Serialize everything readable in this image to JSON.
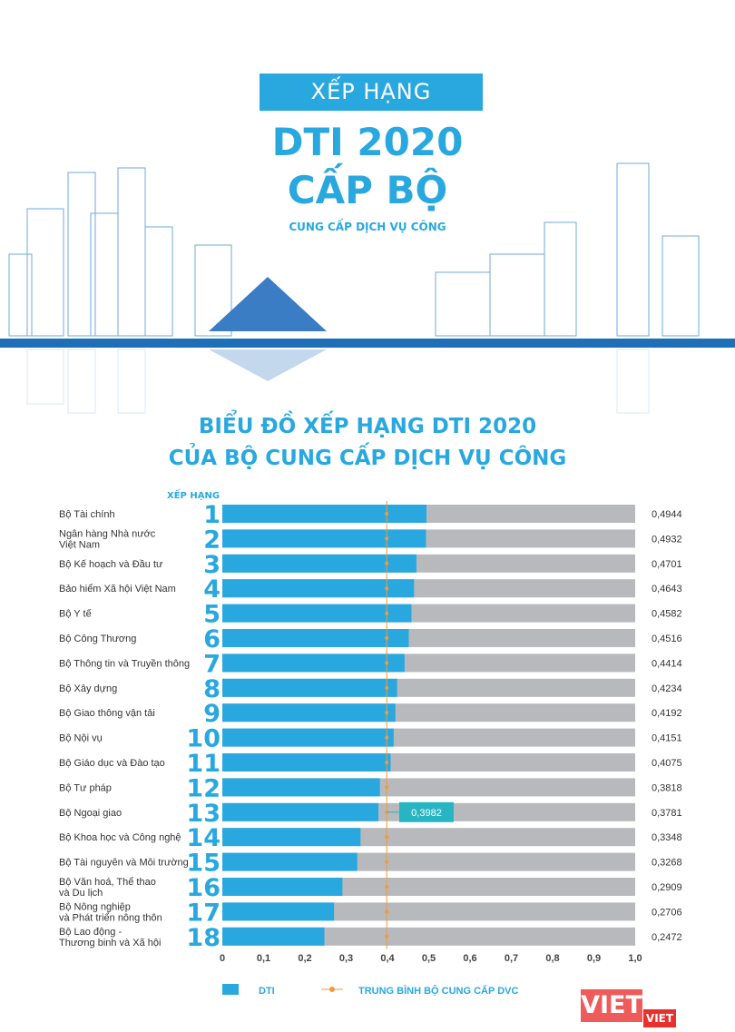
{
  "header": {
    "box": "XẾP HẠNG",
    "title1": "DTI 2020",
    "title2": "CẤP BỘ",
    "subtitle": "CUNG CẤP DỊCH VỤ CÔNG"
  },
  "chart_data": {
    "type": "bar",
    "title_line1": "BIỂU ĐỒ XẾP HẠNG DTI 2020",
    "title_line2": "CỦA BỘ CUNG CẤP DỊCH VỤ CÔNG",
    "rank_header": "XẾP HẠNG",
    "orientation": "horizontal",
    "categories": [
      [
        "Bộ Tài chính"
      ],
      [
        "Ngân hàng Nhà nước",
        "Việt Nam"
      ],
      [
        "Bộ Kế hoạch và Đầu tư"
      ],
      [
        "Bảo hiểm Xã hội Việt Nam"
      ],
      [
        "Bộ Y tế"
      ],
      [
        "Bộ Công Thương"
      ],
      [
        "Bộ Thông tin và Truyền thông"
      ],
      [
        "Bộ Xây dựng"
      ],
      [
        "Bộ Giao thông vận tải"
      ],
      [
        "Bộ Nội vụ"
      ],
      [
        "Bộ Giáo dục và Đào tạo"
      ],
      [
        "Bộ Tư pháp"
      ],
      [
        "Bộ Ngoại giao"
      ],
      [
        "Bộ Khoa học và Công nghệ"
      ],
      [
        "Bộ Tài nguyên và Môi trường"
      ],
      [
        "Bộ Văn hoá, Thể thao",
        "và Du lịch"
      ],
      [
        "Bộ Nông nghiệp",
        "và Phát triển nông thôn"
      ],
      [
        "Bộ Lao động -",
        "Thương binh và Xã hội"
      ]
    ],
    "ranks": [
      "1",
      "2",
      "3",
      "4",
      "5",
      "6",
      "7",
      "8",
      "9",
      "10",
      "11",
      "12",
      "13",
      "14",
      "15",
      "16",
      "17",
      "18"
    ],
    "values": [
      0.4944,
      0.4932,
      0.4701,
      0.4643,
      0.4582,
      0.4516,
      0.4414,
      0.4234,
      0.4192,
      0.4151,
      0.4075,
      0.3818,
      0.3781,
      0.3348,
      0.3268,
      0.2909,
      0.2706,
      0.2472
    ],
    "value_labels": [
      "0,4944",
      "0,4932",
      "0,4701",
      "0,4643",
      "0,4582",
      "0,4516",
      "0,4414",
      "0,4234",
      "0,4192",
      "0,4151",
      "0,4075",
      "0,3818",
      "0,3781",
      "0,3348",
      "0,3268",
      "0,2909",
      "0,2706",
      "0,2472"
    ],
    "average": {
      "value": 0.3982,
      "label": "0,3982",
      "name": "TRUNG BÌNH BỘ CUNG CẤP DVC"
    },
    "series": [
      {
        "name": "DTI"
      }
    ],
    "xlim": [
      0,
      1
    ],
    "xticks": [
      "0",
      "0,1",
      "0,2",
      "0,3",
      "0,4",
      "0,5",
      "0,6",
      "0,7",
      "0,8",
      "0,9",
      "1,0"
    ],
    "legend_position": "bottom",
    "colors": {
      "bar": "#29a8e0",
      "track": "#b7b9bc",
      "average": "#f29a3b",
      "callout": "#27b5c4"
    }
  },
  "logo": {
    "main": "VIET",
    "small": "VIET"
  }
}
